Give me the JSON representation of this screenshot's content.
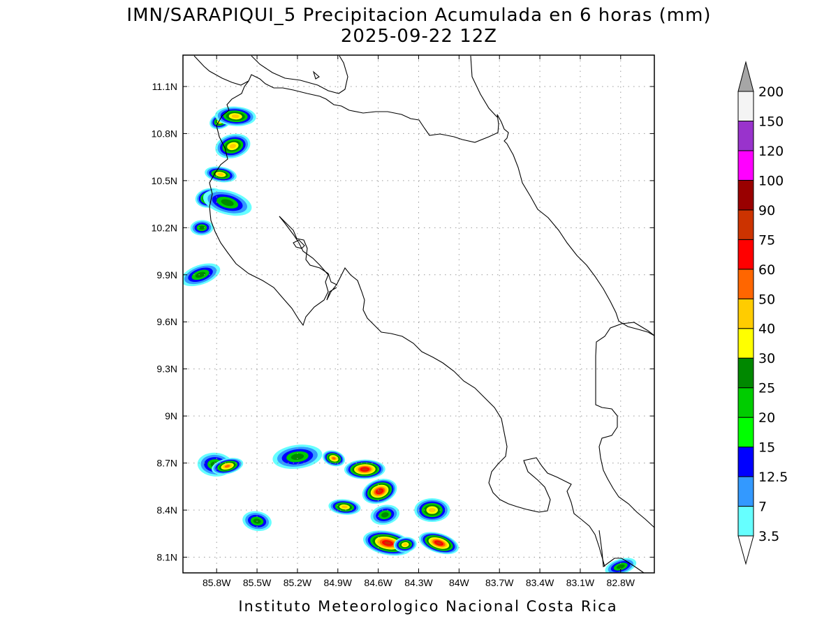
{
  "title_line1": "IMN/SARAPIQUI_5 Precipitacion Acumulada en 6 horas (mm)",
  "title_line2": "2025-09-22 12Z",
  "footer": "Instituto Meteorologico Nacional Costa Rica",
  "map": {
    "lon_range": [
      -86.05,
      -82.55
    ],
    "lat_range": [
      8.0,
      11.3
    ],
    "lon_ticks": [
      {
        "value": -85.8,
        "label": "85.8W"
      },
      {
        "value": -85.5,
        "label": "85.5W"
      },
      {
        "value": -85.2,
        "label": "85.2W"
      },
      {
        "value": -84.9,
        "label": "84.9W"
      },
      {
        "value": -84.6,
        "label": "84.6W"
      },
      {
        "value": -84.3,
        "label": "84.3W"
      },
      {
        "value": -84.0,
        "label": "84W"
      },
      {
        "value": -83.7,
        "label": "83.7W"
      },
      {
        "value": -83.4,
        "label": "83.4W"
      },
      {
        "value": -83.1,
        "label": "83.1W"
      },
      {
        "value": -82.8,
        "label": "82.8W"
      }
    ],
    "lat_ticks": [
      {
        "value": 8.1,
        "label": "8.1N"
      },
      {
        "value": 8.4,
        "label": "8.4N"
      },
      {
        "value": 8.7,
        "label": "8.7N"
      },
      {
        "value": 9.0,
        "label": "9N"
      },
      {
        "value": 9.3,
        "label": "9.3N"
      },
      {
        "value": 9.6,
        "label": "9.6N"
      },
      {
        "value": 9.9,
        "label": "9.9N"
      },
      {
        "value": 10.2,
        "label": "10.2N"
      },
      {
        "value": 10.5,
        "label": "10.5N"
      },
      {
        "value": 10.8,
        "label": "10.8N"
      },
      {
        "value": 11.1,
        "label": "11.1N"
      }
    ],
    "grid": true
  },
  "colorbar": {
    "levels": [
      "3.5",
      "7",
      "12.5",
      "15",
      "20",
      "25",
      "30",
      "40",
      "50",
      "60",
      "75",
      "90",
      "100",
      "120",
      "150",
      "200"
    ],
    "colors": [
      "#ffffff",
      "#66ffff",
      "#3399ff",
      "#0000ff",
      "#00ff00",
      "#00cc00",
      "#008800",
      "#ffff00",
      "#ffcc00",
      "#ff6600",
      "#ff0000",
      "#cc3300",
      "#990000",
      "#ff00ff",
      "#9933cc",
      "#f4f4f4",
      "#a6a6a6"
    ]
  },
  "chart_data": {
    "type": "heatmap",
    "title": "IMN/SARAPIQUI_5 Precipitacion Acumulada en 6 horas (mm)",
    "subtitle": "2025-09-22 12Z",
    "xlabel": "",
    "ylabel": "",
    "xlim": [
      -86.05,
      -82.55
    ],
    "ylim": [
      8.0,
      11.3
    ],
    "units": "mm",
    "precip_cells": [
      {
        "lon": -85.77,
        "lat": 10.88,
        "max_mm": 40
      },
      {
        "lon": -85.66,
        "lat": 10.91,
        "max_mm": 40
      },
      {
        "lon": -85.68,
        "lat": 10.72,
        "max_mm": 40
      },
      {
        "lon": -85.77,
        "lat": 10.54,
        "max_mm": 40
      },
      {
        "lon": -85.85,
        "lat": 10.39,
        "max_mm": 50
      },
      {
        "lon": -85.72,
        "lat": 10.36,
        "max_mm": 25
      },
      {
        "lon": -85.91,
        "lat": 10.2,
        "max_mm": 25
      },
      {
        "lon": -85.92,
        "lat": 9.9,
        "max_mm": 25
      },
      {
        "lon": -85.81,
        "lat": 8.69,
        "max_mm": 25
      },
      {
        "lon": -85.72,
        "lat": 8.68,
        "max_mm": 50
      },
      {
        "lon": -85.5,
        "lat": 8.33,
        "max_mm": 25
      },
      {
        "lon": -85.2,
        "lat": 8.74,
        "max_mm": 25
      },
      {
        "lon": -84.93,
        "lat": 8.73,
        "max_mm": 50
      },
      {
        "lon": -84.7,
        "lat": 8.66,
        "max_mm": 75
      },
      {
        "lon": -84.59,
        "lat": 8.52,
        "max_mm": 75
      },
      {
        "lon": -84.85,
        "lat": 8.42,
        "max_mm": 40
      },
      {
        "lon": -84.55,
        "lat": 8.37,
        "max_mm": 25
      },
      {
        "lon": -84.53,
        "lat": 8.19,
        "max_mm": 75
      },
      {
        "lon": -84.4,
        "lat": 8.18,
        "max_mm": 40
      },
      {
        "lon": -84.15,
        "lat": 8.19,
        "max_mm": 75
      },
      {
        "lon": -84.2,
        "lat": 8.4,
        "max_mm": 40
      },
      {
        "lon": -82.8,
        "lat": 8.04,
        "max_mm": 25
      }
    ]
  }
}
